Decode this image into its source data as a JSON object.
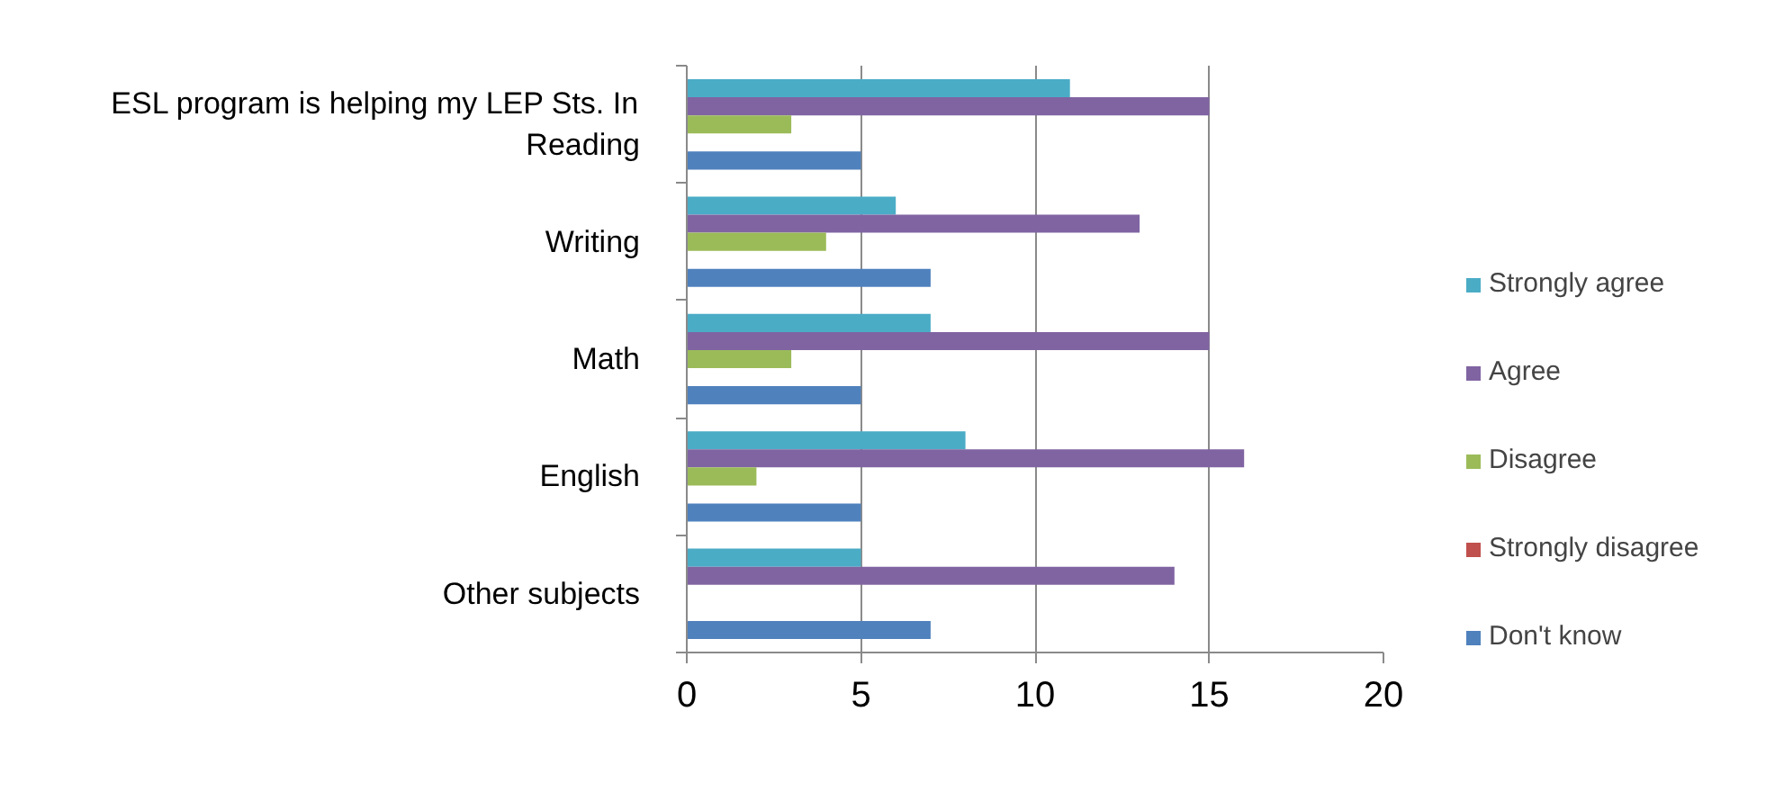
{
  "chart_data": {
    "type": "bar",
    "orientation": "horizontal",
    "categories": [
      "ESL program is helping my LEP Sts. In Reading",
      "Writing",
      "Math",
      "English",
      "Other subjects"
    ],
    "series": [
      {
        "name": "Strongly agree",
        "color": "#4bacc6",
        "values": [
          11,
          6,
          7,
          8,
          5
        ]
      },
      {
        "name": "Agree",
        "color": "#8064a2",
        "values": [
          15,
          13,
          15,
          16,
          14
        ]
      },
      {
        "name": "Disagree",
        "color": "#9bbb59",
        "values": [
          3,
          4,
          3,
          2,
          0
        ]
      },
      {
        "name": "Strongly disagree",
        "color": "#c0504d",
        "values": [
          0,
          0,
          0,
          0,
          0
        ]
      },
      {
        "name": "Don't know",
        "color": "#4f81bd",
        "values": [
          5,
          7,
          5,
          5,
          7
        ]
      }
    ],
    "xlim": [
      0,
      20
    ],
    "xticks": [
      0,
      5,
      10,
      15,
      20
    ],
    "grid": "x",
    "legend": "right"
  }
}
